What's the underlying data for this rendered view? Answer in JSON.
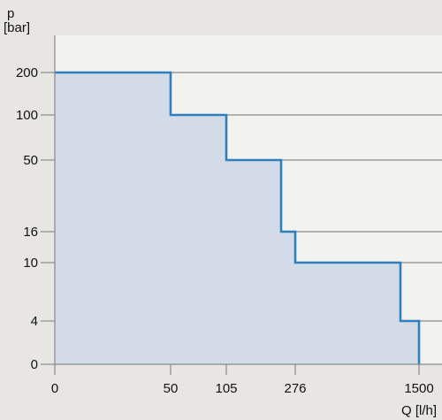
{
  "chart_data": {
    "type": "area",
    "ylabel_symbol": "p",
    "ylabel_unit": "[bar]",
    "xlabel": "Q [l/h]",
    "y_scale": "categorical (non-linear)",
    "x_scale": "categorical (non-linear)",
    "y_ticks": [
      "200",
      "100",
      "50",
      "16",
      "10",
      "4",
      "0"
    ],
    "x_ticks": [
      "0",
      "50",
      "105",
      "276",
      "1500"
    ],
    "grid": "horizontal lines at y ticks",
    "series": [
      {
        "color": "#2f7fbd",
        "fill": "#d3dbe8",
        "points": [
          {
            "q": 0,
            "p": 200
          },
          {
            "q": 50,
            "p": 200
          },
          {
            "q": 50,
            "p": 100
          },
          {
            "q": 105,
            "p": 100
          },
          {
            "q": 105,
            "p": 50
          },
          {
            "q": 218,
            "p": 50
          },
          {
            "q": 218,
            "p": 16
          },
          {
            "q": 276,
            "p": 16
          },
          {
            "q": 276,
            "p": 10
          },
          {
            "q": 1300,
            "p": 10
          },
          {
            "q": 1300,
            "p": 4
          },
          {
            "q": 1500,
            "p": 4
          },
          {
            "q": 1500,
            "p": 0
          }
        ]
      }
    ]
  },
  "colors": {
    "background": "#e7e6e3",
    "plot_area": "#f2f2ee",
    "grid": "#8a8a8a",
    "line": "#2f7fbd",
    "fill": "#d3dbe8"
  }
}
